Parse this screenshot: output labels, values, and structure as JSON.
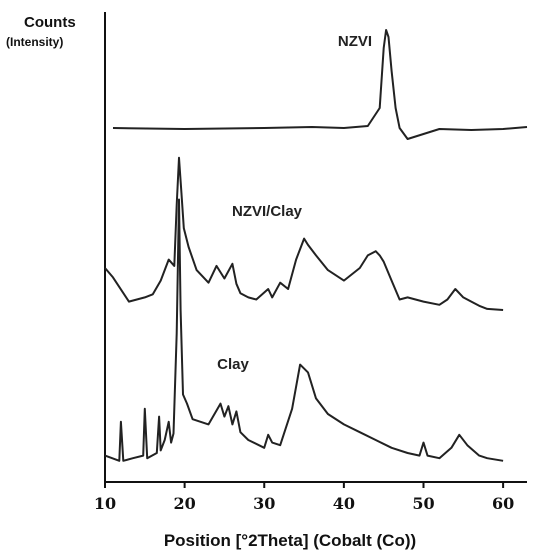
{
  "chart_data": {
    "type": "line",
    "ylabel": "Counts",
    "ylabel_sub": "(Intensity)",
    "xlabel": "Position [°2Theta] (Cobalt (Co))",
    "xlim": [
      10,
      63
    ],
    "xticks": [
      10,
      20,
      30,
      40,
      50,
      60
    ],
    "stacked_offset": true,
    "series": [
      {
        "name": "NZVI",
        "color": "#222222",
        "x": [
          11,
          20,
          30,
          36,
          40,
          43,
          44.5,
          45,
          45.3,
          45.6,
          46,
          46.5,
          47,
          48,
          52,
          56,
          60,
          63
        ],
        "y": [
          5,
          4,
          5,
          6,
          5,
          7,
          25,
          85,
          103,
          96,
          62,
          25,
          5,
          -6,
          4,
          3,
          4,
          6
        ]
      },
      {
        "name": "NZVI/Clay",
        "color": "#222222",
        "x": [
          10,
          11,
          13,
          15,
          16,
          17,
          18,
          18.7,
          19,
          19.3,
          19.6,
          19.9,
          20.5,
          21.5,
          23,
          24,
          25,
          26,
          26.5,
          27,
          28,
          29,
          30.5,
          31,
          32,
          33,
          34,
          35,
          35.5,
          36.5,
          38,
          40,
          42,
          43,
          44,
          44.5,
          45,
          46,
          47,
          48,
          50,
          52,
          53,
          54,
          55,
          56,
          57,
          58,
          60
        ],
        "y": [
          40,
          31,
          8,
          12,
          15,
          28,
          48,
          42,
          100,
          145,
          112,
          78,
          60,
          38,
          26,
          42,
          30,
          44,
          25,
          16,
          12,
          10,
          20,
          12,
          26,
          20,
          48,
          68,
          62,
          52,
          38,
          28,
          40,
          52,
          56,
          52,
          46,
          28,
          10,
          12,
          8,
          5,
          10,
          20,
          12,
          8,
          4,
          1,
          0
        ]
      },
      {
        "name": "Clay",
        "color": "#222222",
        "x": [
          10,
          11.8,
          12,
          12.3,
          13.5,
          14.8,
          15,
          15.3,
          16.5,
          16.8,
          17,
          17.5,
          18,
          18.3,
          18.6,
          19,
          19.3,
          19.5,
          19.8,
          20.3,
          21,
          23,
          24.5,
          25,
          25.5,
          26,
          26.5,
          27,
          28,
          30,
          30.5,
          31,
          32,
          33.5,
          34.5,
          35.5,
          36.5,
          38,
          40,
          42,
          44,
          46,
          48,
          49.5,
          50,
          50.5,
          52,
          53.5,
          54.5,
          55.5,
          57,
          58,
          60
        ],
        "y": [
          8,
          4,
          34,
          4,
          6,
          8,
          44,
          6,
          10,
          38,
          12,
          20,
          34,
          18,
          25,
          102,
          205,
          120,
          55,
          48,
          36,
          32,
          48,
          38,
          46,
          32,
          42,
          26,
          20,
          14,
          24,
          18,
          16,
          44,
          78,
          72,
          52,
          40,
          32,
          26,
          20,
          14,
          10,
          8,
          18,
          8,
          6,
          14,
          24,
          16,
          8,
          6,
          4
        ]
      }
    ]
  }
}
